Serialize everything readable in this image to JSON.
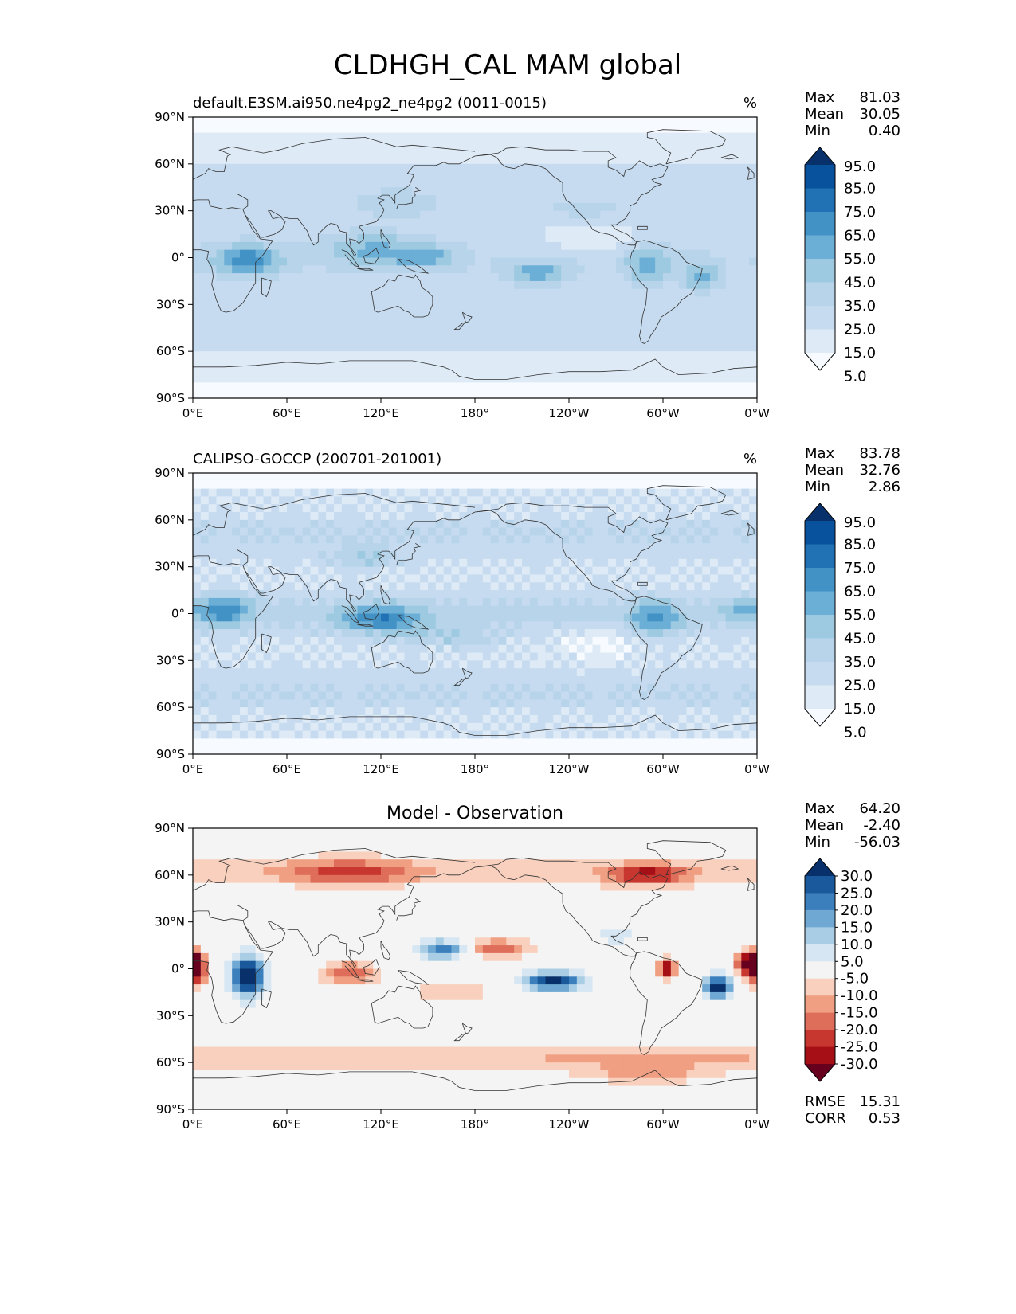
{
  "suptitle": "CLDHGH_CAL MAM global",
  "colors": {
    "blues": [
      "#f7fbff",
      "#deebf7",
      "#c6dbef",
      "#b7d4ea",
      "#9ecae1",
      "#6baed6",
      "#4292c6",
      "#2171b5",
      "#08519c",
      "#08306b"
    ],
    "diverging": [
      "#67001f",
      "#a50f15",
      "#c7362f",
      "#de6e5a",
      "#f09f83",
      "#f9d0bd",
      "#f4f4f4",
      "#d6e6f2",
      "#a8cde4",
      "#6fa9d3",
      "#3b7fbd",
      "#1a5a9c",
      "#08306b"
    ],
    "coast": "#333333"
  },
  "chart_data": [
    {
      "type": "heatmap",
      "subtitle_left": "default.E3SM.ai950.ne4pg2_ne4pg2 (0011-0015)",
      "units": "%",
      "x_ticks": [
        "0°E",
        "60°E",
        "120°E",
        "180°",
        "120°W",
        "60°W",
        "0°W"
      ],
      "y_ticks": [
        "90°N",
        "60°N",
        "30°N",
        "0°",
        "30°S",
        "60°S",
        "90°S"
      ],
      "xlim": [
        0,
        360
      ],
      "ylim": [
        -90,
        90
      ],
      "stats": [
        {
          "label": "Max",
          "value": "81.03"
        },
        {
          "label": "Mean",
          "value": "30.05"
        },
        {
          "label": "Min",
          "value": "0.40"
        }
      ],
      "colorbar": {
        "labels": [
          "95.0",
          "85.0",
          "75.0",
          "65.0",
          "55.0",
          "45.0",
          "35.0",
          "25.0",
          "15.0",
          "5.0"
        ]
      },
      "fields": {
        "mean": 30.05,
        "max": 81.03,
        "min": 0.4
      }
    },
    {
      "type": "heatmap",
      "subtitle_left": "CALIPSO-GOCCP (200701-201001)",
      "units": "%",
      "x_ticks": [
        "0°E",
        "60°E",
        "120°E",
        "180°",
        "120°W",
        "60°W",
        "0°W"
      ],
      "y_ticks": [
        "90°N",
        "60°N",
        "30°N",
        "0°",
        "30°S",
        "60°S",
        "90°S"
      ],
      "xlim": [
        0,
        360
      ],
      "ylim": [
        -90,
        90
      ],
      "stats": [
        {
          "label": "Max",
          "value": "83.78"
        },
        {
          "label": "Mean",
          "value": "32.76"
        },
        {
          "label": "Min",
          "value": "2.86"
        }
      ],
      "colorbar": {
        "labels": [
          "95.0",
          "85.0",
          "75.0",
          "65.0",
          "55.0",
          "45.0",
          "35.0",
          "25.0",
          "15.0",
          "5.0"
        ]
      },
      "fields": {
        "mean": 32.76,
        "max": 83.78,
        "min": 2.86
      }
    },
    {
      "type": "heatmap",
      "title": "Model - Observation",
      "x_ticks": [
        "0°E",
        "60°E",
        "120°E",
        "180°",
        "120°W",
        "60°W",
        "0°W"
      ],
      "y_ticks": [
        "90°N",
        "60°N",
        "30°N",
        "0°",
        "30°S",
        "60°S",
        "90°S"
      ],
      "xlim": [
        0,
        360
      ],
      "ylim": [
        -90,
        90
      ],
      "stats": [
        {
          "label": "Max",
          "value": "64.20"
        },
        {
          "label": "Mean",
          "value": "-2.40"
        },
        {
          "label": "Min",
          "value": "-56.03"
        }
      ],
      "colorbar": {
        "labels": [
          "30.0",
          "25.0",
          "20.0",
          "15.0",
          "10.0",
          "5.0",
          "-5.0",
          "-10.0",
          "-15.0",
          "-20.0",
          "-25.0",
          "-30.0"
        ]
      },
      "metrics": [
        {
          "label": "RMSE",
          "value": "15.31"
        },
        {
          "label": "CORR",
          "value": "0.53"
        }
      ],
      "fields": {
        "mean": -2.4,
        "max": 64.2,
        "min": -56.03
      }
    }
  ]
}
